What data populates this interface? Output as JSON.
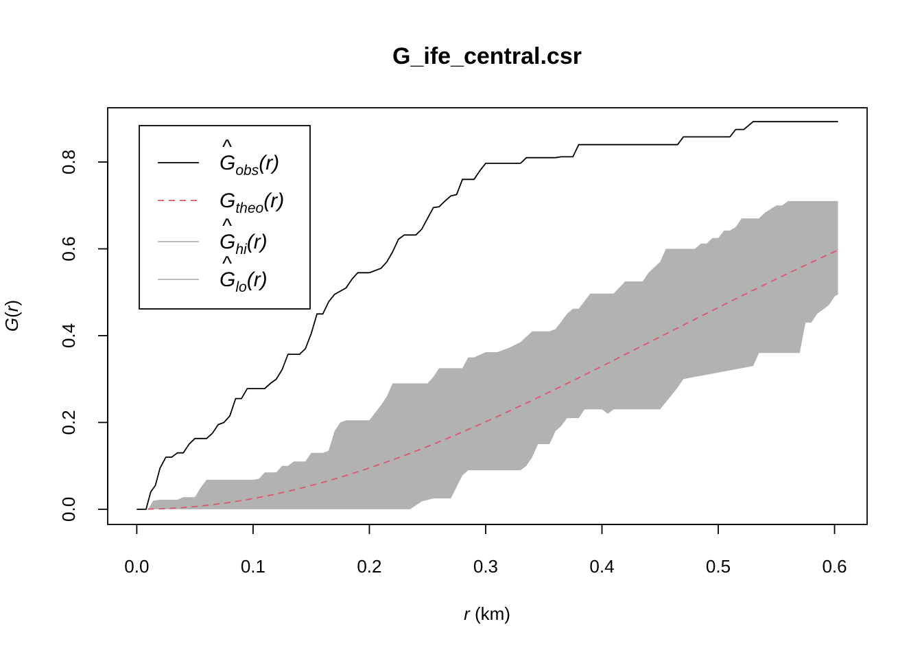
{
  "chart_data": {
    "type": "line",
    "title": "G_ife_central.csr",
    "xlabel": {
      "var": "r",
      "unit": " (km)"
    },
    "ylabel": {
      "func": "G",
      "open": "(",
      "var": "r",
      "close": ")"
    },
    "xlim": [
      -0.025,
      0.628
    ],
    "ylim": [
      -0.035,
      0.925
    ],
    "x_ticks": [
      0.0,
      0.1,
      0.2,
      0.3,
      0.4,
      0.5,
      0.6
    ],
    "x_tick_labels": [
      "0.0",
      "0.1",
      "0.2",
      "0.3",
      "0.4",
      "0.5",
      "0.6"
    ],
    "y_ticks": [
      0.0,
      0.2,
      0.4,
      0.6,
      0.8
    ],
    "y_tick_labels": [
      "0.0",
      "0.2",
      "0.4",
      "0.6",
      "0.8"
    ],
    "grid": false,
    "legend_position": "top-left",
    "colors": {
      "obs": "#000000",
      "theo": "#DF536B",
      "envelope": "#B2B2B2"
    },
    "series": [
      {
        "name": "obs",
        "legend": {
          "base": "G",
          "hat": true,
          "sub": "obs",
          "arg": "(r)"
        },
        "style": "solid",
        "points": [
          [
            0,
            0
          ],
          [
            0.008,
            0
          ],
          [
            0.012,
            0.04
          ],
          [
            0.016,
            0.055
          ],
          [
            0.02,
            0.095
          ],
          [
            0.025,
            0.12
          ],
          [
            0.03,
            0.12
          ],
          [
            0.035,
            0.13
          ],
          [
            0.04,
            0.13
          ],
          [
            0.045,
            0.15
          ],
          [
            0.05,
            0.163
          ],
          [
            0.06,
            0.163
          ],
          [
            0.065,
            0.175
          ],
          [
            0.07,
            0.195
          ],
          [
            0.075,
            0.2
          ],
          [
            0.08,
            0.215
          ],
          [
            0.085,
            0.255
          ],
          [
            0.09,
            0.255
          ],
          [
            0.095,
            0.278
          ],
          [
            0.11,
            0.278
          ],
          [
            0.115,
            0.29
          ],
          [
            0.12,
            0.3
          ],
          [
            0.125,
            0.322
          ],
          [
            0.13,
            0.357
          ],
          [
            0.14,
            0.357
          ],
          [
            0.145,
            0.37
          ],
          [
            0.15,
            0.405
          ],
          [
            0.155,
            0.45
          ],
          [
            0.16,
            0.45
          ],
          [
            0.165,
            0.478
          ],
          [
            0.17,
            0.495
          ],
          [
            0.18,
            0.51
          ],
          [
            0.185,
            0.53
          ],
          [
            0.19,
            0.545
          ],
          [
            0.2,
            0.545
          ],
          [
            0.21,
            0.555
          ],
          [
            0.215,
            0.57
          ],
          [
            0.22,
            0.593
          ],
          [
            0.225,
            0.622
          ],
          [
            0.23,
            0.632
          ],
          [
            0.24,
            0.632
          ],
          [
            0.245,
            0.645
          ],
          [
            0.25,
            0.67
          ],
          [
            0.255,
            0.695
          ],
          [
            0.26,
            0.697
          ],
          [
            0.265,
            0.71
          ],
          [
            0.27,
            0.722
          ],
          [
            0.275,
            0.725
          ],
          [
            0.28,
            0.76
          ],
          [
            0.29,
            0.76
          ],
          [
            0.295,
            0.78
          ],
          [
            0.3,
            0.797
          ],
          [
            0.33,
            0.797
          ],
          [
            0.335,
            0.81
          ],
          [
            0.36,
            0.81
          ],
          [
            0.365,
            0.812
          ],
          [
            0.375,
            0.812
          ],
          [
            0.38,
            0.84
          ],
          [
            0.465,
            0.84
          ],
          [
            0.47,
            0.858
          ],
          [
            0.51,
            0.858
          ],
          [
            0.515,
            0.875
          ],
          [
            0.522,
            0.875
          ],
          [
            0.53,
            0.893
          ],
          [
            0.603,
            0.893
          ]
        ]
      },
      {
        "name": "theo",
        "legend": {
          "base": "G",
          "hat": false,
          "sub": "theo",
          "arg": "(r)"
        },
        "style": "dashed",
        "formula": "1 - exp(-2.5 * r^2)",
        "x_range": [
          0,
          0.603
        ]
      },
      {
        "name": "hi",
        "legend": {
          "base": "G",
          "hat": true,
          "sub": "hi",
          "arg": "(r)"
        },
        "style": "envelope-upper",
        "points": [
          [
            0,
            0
          ],
          [
            0.01,
            0
          ],
          [
            0.014,
            0.02
          ],
          [
            0.02,
            0.022
          ],
          [
            0.035,
            0.022
          ],
          [
            0.04,
            0.028
          ],
          [
            0.05,
            0.028
          ],
          [
            0.055,
            0.05
          ],
          [
            0.06,
            0.068
          ],
          [
            0.1,
            0.068
          ],
          [
            0.105,
            0.07
          ],
          [
            0.11,
            0.085
          ],
          [
            0.12,
            0.085
          ],
          [
            0.125,
            0.1
          ],
          [
            0.13,
            0.1
          ],
          [
            0.135,
            0.11
          ],
          [
            0.14,
            0.11
          ],
          [
            0.145,
            0.11
          ],
          [
            0.15,
            0.13
          ],
          [
            0.16,
            0.13
          ],
          [
            0.165,
            0.135
          ],
          [
            0.17,
            0.18
          ],
          [
            0.175,
            0.2
          ],
          [
            0.18,
            0.205
          ],
          [
            0.2,
            0.205
          ],
          [
            0.21,
            0.24
          ],
          [
            0.215,
            0.26
          ],
          [
            0.22,
            0.29
          ],
          [
            0.25,
            0.29
          ],
          [
            0.255,
            0.305
          ],
          [
            0.26,
            0.325
          ],
          [
            0.28,
            0.325
          ],
          [
            0.285,
            0.35
          ],
          [
            0.29,
            0.35
          ],
          [
            0.3,
            0.362
          ],
          [
            0.31,
            0.362
          ],
          [
            0.32,
            0.372
          ],
          [
            0.33,
            0.385
          ],
          [
            0.34,
            0.41
          ],
          [
            0.355,
            0.41
          ],
          [
            0.36,
            0.415
          ],
          [
            0.37,
            0.45
          ],
          [
            0.375,
            0.462
          ],
          [
            0.38,
            0.462
          ],
          [
            0.39,
            0.497
          ],
          [
            0.41,
            0.497
          ],
          [
            0.42,
            0.525
          ],
          [
            0.435,
            0.525
          ],
          [
            0.44,
            0.545
          ],
          [
            0.45,
            0.57
          ],
          [
            0.455,
            0.6
          ],
          [
            0.48,
            0.6
          ],
          [
            0.485,
            0.612
          ],
          [
            0.49,
            0.612
          ],
          [
            0.495,
            0.625
          ],
          [
            0.5,
            0.625
          ],
          [
            0.505,
            0.642
          ],
          [
            0.51,
            0.642
          ],
          [
            0.515,
            0.65
          ],
          [
            0.52,
            0.67
          ],
          [
            0.535,
            0.67
          ],
          [
            0.54,
            0.683
          ],
          [
            0.55,
            0.7
          ],
          [
            0.555,
            0.7
          ],
          [
            0.56,
            0.71
          ],
          [
            0.603,
            0.71
          ]
        ]
      },
      {
        "name": "lo",
        "legend": {
          "base": "G",
          "hat": true,
          "sub": "lo",
          "arg": "(r)"
        },
        "style": "envelope-lower",
        "points": [
          [
            0,
            0
          ],
          [
            0.235,
            0
          ],
          [
            0.245,
            0.018
          ],
          [
            0.255,
            0.025
          ],
          [
            0.27,
            0.025
          ],
          [
            0.28,
            0.078
          ],
          [
            0.285,
            0.09
          ],
          [
            0.33,
            0.09
          ],
          [
            0.335,
            0.1
          ],
          [
            0.34,
            0.12
          ],
          [
            0.345,
            0.15
          ],
          [
            0.355,
            0.15
          ],
          [
            0.36,
            0.18
          ],
          [
            0.365,
            0.192
          ],
          [
            0.37,
            0.21
          ],
          [
            0.38,
            0.21
          ],
          [
            0.385,
            0.23
          ],
          [
            0.4,
            0.23
          ],
          [
            0.405,
            0.22
          ],
          [
            0.41,
            0.23
          ],
          [
            0.45,
            0.23
          ],
          [
            0.465,
            0.28
          ],
          [
            0.47,
            0.3
          ],
          [
            0.48,
            0.305
          ],
          [
            0.49,
            0.31
          ],
          [
            0.5,
            0.315
          ],
          [
            0.51,
            0.32
          ],
          [
            0.53,
            0.33
          ],
          [
            0.535,
            0.36
          ],
          [
            0.56,
            0.36
          ],
          [
            0.57,
            0.36
          ],
          [
            0.575,
            0.43
          ],
          [
            0.58,
            0.43
          ],
          [
            0.585,
            0.45
          ],
          [
            0.59,
            0.46
          ],
          [
            0.595,
            0.47
          ],
          [
            0.6,
            0.49
          ],
          [
            0.603,
            0.495
          ]
        ]
      }
    ]
  }
}
